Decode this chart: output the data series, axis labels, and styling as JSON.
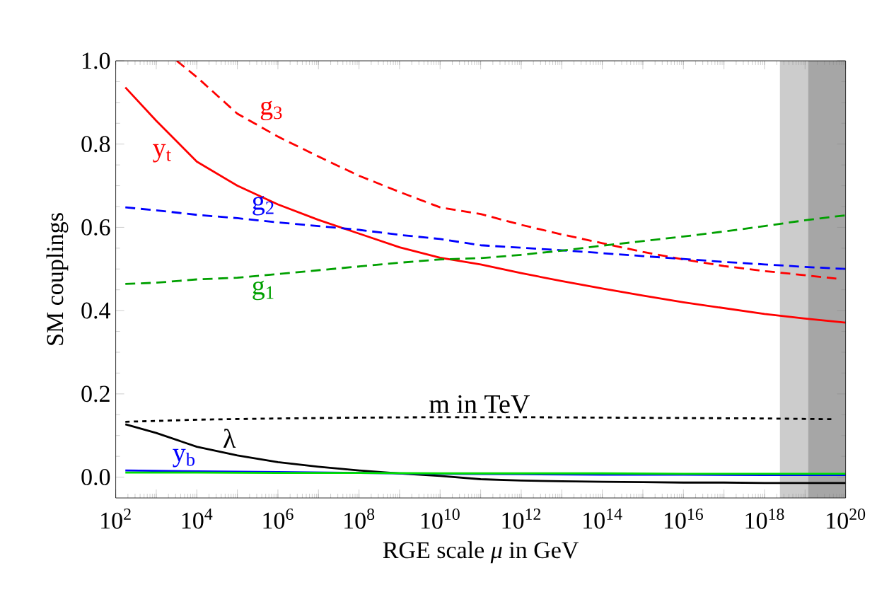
{
  "chart_data": {
    "type": "line",
    "xlabel": "RGE scale *μ* in GeV",
    "ylabel": "SM couplings",
    "log": "x",
    "xlim": [
      100,
      1e+20
    ],
    "ylim": [
      -0.05,
      1.0
    ],
    "xticks": [
      {
        "value": 100.0,
        "label": "10$^{2}$"
      },
      {
        "value": 1000.0,
        "label": null
      },
      {
        "value": 10000.0,
        "label": "10$^{4}$"
      },
      {
        "value": 100000.0,
        "label": null
      },
      {
        "value": 1000000.0,
        "label": "10$^{6}$"
      },
      {
        "value": 10000000.0,
        "label": null
      },
      {
        "value": 100000000.0,
        "label": "10$^{8}$"
      },
      {
        "value": 1000000000.0,
        "label": null
      },
      {
        "value": 10000000000.0,
        "label": "10$^{10}$"
      },
      {
        "value": 100000000000.0,
        "label": null
      },
      {
        "value": 1000000000000.0,
        "label": "10$^{12}$"
      },
      {
        "value": 10000000000000.0,
        "label": null
      },
      {
        "value": 100000000000000.0,
        "label": "10$^{14}$"
      },
      {
        "value": 1000000000000000.0,
        "label": null
      },
      {
        "value": 1e+16,
        "label": "10$^{16}$"
      },
      {
        "value": 1e+17,
        "label": null
      },
      {
        "value": 1e+18,
        "label": "10$^{18}$"
      },
      {
        "value": 1e+19,
        "label": null
      },
      {
        "value": 1e+20,
        "label": "10$^{20}$"
      }
    ],
    "yticks": [
      {
        "value": 0,
        "label": "0.0"
      },
      0.2,
      0.4,
      0.6,
      0.8,
      {
        "value": 1,
        "label": "1.0"
      }
    ],
    "grid": false,
    "bands": [
      {
        "axis": "x",
        "from": 2.4e+18,
        "to": 1e+20,
        "color": "#cccccc"
      },
      {
        "axis": "x",
        "from": 1.2e+19,
        "to": 1e+20,
        "color": "#a6a6a6"
      }
    ],
    "series": [
      {
        "name": "y$_{t}$",
        "color": "#ff0000",
        "line_style": "solid",
        "x": [
          173,
          1000.0,
          10000.0,
          100000.0,
          1000000.0,
          10000000.0,
          100000000.0,
          1000000000.0,
          10000000000.0,
          100000000000.0,
          1000000000000.0,
          10000000000000.0,
          100000000000000.0,
          1000000000000000.0,
          1e+16,
          1e+17,
          1e+18,
          1e+19,
          1e+20
        ],
        "values": [
          0.936,
          0.856,
          0.758,
          0.7,
          0.655,
          0.618,
          0.585,
          0.552,
          0.527,
          0.511,
          0.49,
          0.471,
          0.453,
          0.436,
          0.42,
          0.406,
          0.392,
          0.381,
          0.371
        ]
      },
      {
        "name": "g$_{3}$",
        "color": "#ff0000",
        "line_style": "dashed",
        "x": [
          3200.0,
          10000.0,
          100000.0,
          1000000.0,
          10000000.0,
          100000000.0,
          1000000000.0,
          10000000000.0,
          100000000000.0,
          1000000000000.0,
          10000000000000.0,
          100000000000000.0,
          1000000000000000.0,
          1e+16,
          1e+17,
          1e+18,
          1e+19,
          5.9e+19
        ],
        "values": [
          1.0,
          0.961,
          0.873,
          0.818,
          0.77,
          0.724,
          0.685,
          0.648,
          0.632,
          0.606,
          0.583,
          0.562,
          0.541,
          0.523,
          0.507,
          0.495,
          0.485,
          0.477
        ]
      },
      {
        "name": "g$_{2}$",
        "color": "#0000ff",
        "line_style": "dashed",
        "x": [
          173,
          1000.0,
          10000.0,
          100000.0,
          1000000.0,
          10000000.0,
          100000000.0,
          1000000000.0,
          10000000000.0,
          100000000000.0,
          1000000000000.0,
          10000000000000.0,
          100000000000000.0,
          1000000000000000.0,
          1e+16,
          1e+17,
          1e+18,
          1e+19,
          1e+20
        ],
        "values": [
          0.648,
          0.641,
          0.63,
          0.622,
          0.612,
          0.603,
          0.594,
          0.582,
          0.572,
          0.557,
          0.551,
          0.545,
          0.538,
          0.531,
          0.524,
          0.517,
          0.511,
          0.505,
          0.5
        ]
      },
      {
        "name": "g$_{1}$",
        "color": "#00a000",
        "line_style": "dashed",
        "x": [
          173,
          1000.0,
          10000.0,
          100000.0,
          1000000.0,
          10000000.0,
          100000000.0,
          1000000000.0,
          10000000000.0,
          100000000000.0,
          1000000000000.0,
          10000000000000.0,
          100000000000000.0,
          1000000000000000.0,
          1e+16,
          1e+17,
          1e+18,
          1e+19,
          1e+20
        ],
        "values": [
          0.464,
          0.467,
          0.475,
          0.479,
          0.488,
          0.497,
          0.506,
          0.515,
          0.523,
          0.526,
          0.534,
          0.544,
          0.556,
          0.567,
          0.578,
          0.59,
          0.603,
          0.617,
          0.629
        ]
      },
      {
        "name": "m in TeV",
        "color": "#000000",
        "line_style": "dotted",
        "x": [
          173,
          1000.0,
          10000.0,
          1000000.0,
          100000000.0,
          10000000000.0,
          1000000000000.0,
          100000000000000.0,
          1e+16,
          1e+18,
          5e+19
        ],
        "values": [
          0.133,
          0.135,
          0.138,
          0.141,
          0.143,
          0.144,
          0.144,
          0.143,
          0.142,
          0.141,
          0.139
        ]
      },
      {
        "name": "λ",
        "color": "#000000",
        "line_style": "solid",
        "x": [
          173,
          1000.0,
          10000.0,
          100000.0,
          1000000.0,
          10000000.0,
          100000000.0,
          1000000000.0,
          10000000000.0,
          100000000000.0,
          1000000000000.0,
          10000000000000.0,
          100000000000000.0,
          1000000000000000.0,
          1e+16,
          1e+17,
          1e+18,
          1e+19,
          1e+20
        ],
        "values": [
          0.127,
          0.106,
          0.073,
          0.052,
          0.036,
          0.025,
          0.016,
          0.009,
          0.003,
          -0.005,
          -0.008,
          -0.01,
          -0.011,
          -0.012,
          -0.013,
          -0.013,
          -0.014,
          -0.014,
          -0.014
        ]
      },
      {
        "name": "y$_{b}$",
        "color": "#0000ff",
        "line_style": "solid",
        "x": [
          173,
          10000.0,
          1000000.0,
          100000000.0,
          10000000000.0,
          1000000000000.0,
          100000000000000.0,
          1e+16,
          1e+18,
          1e+20
        ],
        "values": [
          0.016,
          0.014,
          0.012,
          null,
          0.008,
          0.007,
          0.006,
          0.006,
          0.005,
          0.005
        ]
      },
      {
        "color": "#00e000",
        "line_style": "solid",
        "x": [
          173,
          10000.0,
          1000000.0,
          100000000.0,
          10000000000.0,
          1000000000000.0,
          100000000000000.0,
          1e+16,
          1e+18,
          1e+20
        ],
        "values": [
          0.011,
          0.011,
          0.01,
          0.01,
          0.009,
          0.009,
          0.009,
          0.008,
          0.008,
          0.008
        ]
      }
    ]
  }
}
